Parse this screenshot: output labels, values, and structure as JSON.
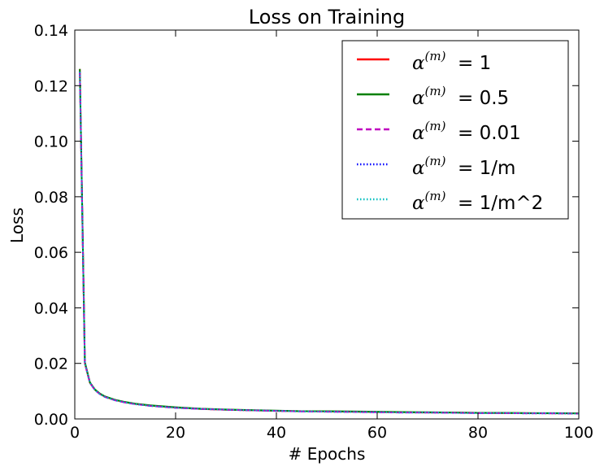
{
  "chart_data": {
    "type": "line",
    "title": "Loss on Training",
    "xlabel": "# Epochs",
    "ylabel": "Loss",
    "xlim": [
      0,
      100
    ],
    "ylim": [
      0,
      0.14
    ],
    "xticks": [
      "0",
      "20",
      "40",
      "60",
      "80",
      "100"
    ],
    "yticks": [
      "0.00",
      "0.02",
      "0.04",
      "0.06",
      "0.08",
      "0.10",
      "0.12",
      "0.14"
    ],
    "grid": false,
    "legend_position": "top-right",
    "x": [
      1,
      2,
      3,
      4,
      5,
      6,
      8,
      10,
      12,
      15,
      20,
      25,
      30,
      35,
      40,
      45,
      50,
      55,
      60,
      65,
      70,
      75,
      80,
      85,
      90,
      95,
      100
    ],
    "series": [
      {
        "name": "= 1",
        "color": "#ff0000",
        "style": "solid",
        "values": [
          0.126,
          0.02,
          0.013,
          0.0105,
          0.009,
          0.008,
          0.0068,
          0.006,
          0.0054,
          0.0048,
          0.0041,
          0.0036,
          0.0033,
          0.0031,
          0.0029,
          0.0028,
          0.0027,
          0.0026,
          0.0025,
          0.0024,
          0.0023,
          0.0023,
          0.0022,
          0.0021,
          0.0021,
          0.002,
          0.002
        ]
      },
      {
        "name": "= 0.5",
        "color": "#008000",
        "style": "solid",
        "values": [
          0.126,
          0.0205,
          0.0132,
          0.0106,
          0.0091,
          0.0081,
          0.0069,
          0.0061,
          0.0055,
          0.0049,
          0.0042,
          0.0037,
          0.0034,
          0.0032,
          0.003,
          0.0028,
          0.0028,
          0.0027,
          0.0026,
          0.0025,
          0.0024,
          0.0023,
          0.0022,
          0.0022,
          0.0021,
          0.0021,
          0.002
        ]
      },
      {
        "name": "= 0.01",
        "color": "#bf00bf",
        "style": "dashed",
        "values": [
          0.125,
          0.02,
          0.013,
          0.0104,
          0.0089,
          0.0079,
          0.0067,
          0.0059,
          0.0053,
          0.0047,
          0.004,
          0.0036,
          0.0033,
          0.0031,
          0.0029,
          0.0027,
          0.0026,
          0.0025,
          0.0024,
          0.0023,
          0.0023,
          0.0022,
          0.0021,
          0.0021,
          0.002,
          0.002,
          0.0019
        ]
      },
      {
        "name": "= 1/m",
        "color": "#0000ff",
        "style": "dotted",
        "values": [
          0.125,
          0.02,
          0.013,
          0.0104,
          0.0089,
          0.0079,
          0.0067,
          0.0059,
          0.0053,
          0.0047,
          0.004,
          0.0036,
          0.0033,
          0.0031,
          0.0029,
          0.0027,
          0.0026,
          0.0025,
          0.0024,
          0.0023,
          0.0023,
          0.0022,
          0.0021,
          0.0021,
          0.002,
          0.002,
          0.0019
        ]
      },
      {
        "name": "= 1/m^2",
        "color": "#00bfbf",
        "style": "dotted",
        "values": [
          0.125,
          0.02,
          0.013,
          0.0104,
          0.0089,
          0.0079,
          0.0067,
          0.0059,
          0.0053,
          0.0047,
          0.004,
          0.0036,
          0.0033,
          0.0031,
          0.0029,
          0.0027,
          0.0026,
          0.0025,
          0.0024,
          0.0023,
          0.0023,
          0.0022,
          0.0021,
          0.0021,
          0.002,
          0.002,
          0.0019
        ]
      }
    ]
  }
}
